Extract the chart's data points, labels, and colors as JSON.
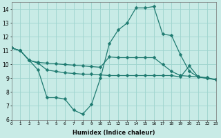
{
  "xlabel": "Humidex (Indice chaleur)",
  "background_color": "#c8ebe6",
  "grid_color": "#9dd4ce",
  "line_color": "#1e7a70",
  "x_min": 0,
  "x_max": 23,
  "y_min": 6,
  "y_max": 14.5,
  "yticks": [
    6,
    7,
    8,
    9,
    10,
    11,
    12,
    13,
    14
  ],
  "line1_x": [
    0,
    1,
    2,
    3,
    4,
    5,
    6,
    7,
    8,
    9,
    10,
    11,
    12,
    13,
    14,
    15,
    16,
    17,
    18,
    19,
    20,
    21,
    22,
    23
  ],
  "line1_y": [
    11.2,
    11.0,
    10.3,
    10.15,
    10.1,
    10.05,
    10.0,
    9.95,
    9.9,
    9.85,
    9.8,
    10.55,
    10.5,
    10.5,
    10.5,
    10.5,
    10.5,
    10.0,
    9.5,
    9.2,
    9.15,
    9.1,
    9.05,
    8.9
  ],
  "line2_x": [
    0,
    1,
    2,
    3,
    4,
    5,
    6,
    7,
    8,
    9,
    10,
    11,
    12,
    13,
    14,
    15,
    16,
    17,
    18,
    19,
    20,
    21,
    22,
    23
  ],
  "line2_y": [
    11.2,
    11.0,
    10.3,
    9.6,
    7.6,
    7.6,
    7.5,
    6.7,
    6.4,
    7.1,
    9.0,
    11.5,
    12.5,
    13.0,
    14.1,
    14.1,
    14.2,
    12.2,
    12.1,
    10.7,
    9.5,
    9.1,
    9.0,
    8.9
  ],
  "line3_x": [
    0,
    1,
    2,
    3,
    4,
    5,
    6,
    7,
    8,
    9,
    10,
    11,
    12,
    13,
    14,
    15,
    16,
    17,
    18,
    19,
    20,
    21,
    22,
    23
  ],
  "line3_y": [
    11.2,
    11.0,
    10.3,
    10.1,
    9.6,
    9.5,
    9.4,
    9.35,
    9.3,
    9.3,
    9.25,
    9.2,
    9.2,
    9.2,
    9.2,
    9.2,
    9.2,
    9.2,
    9.2,
    9.1,
    9.9,
    9.1,
    9.0,
    8.9
  ]
}
